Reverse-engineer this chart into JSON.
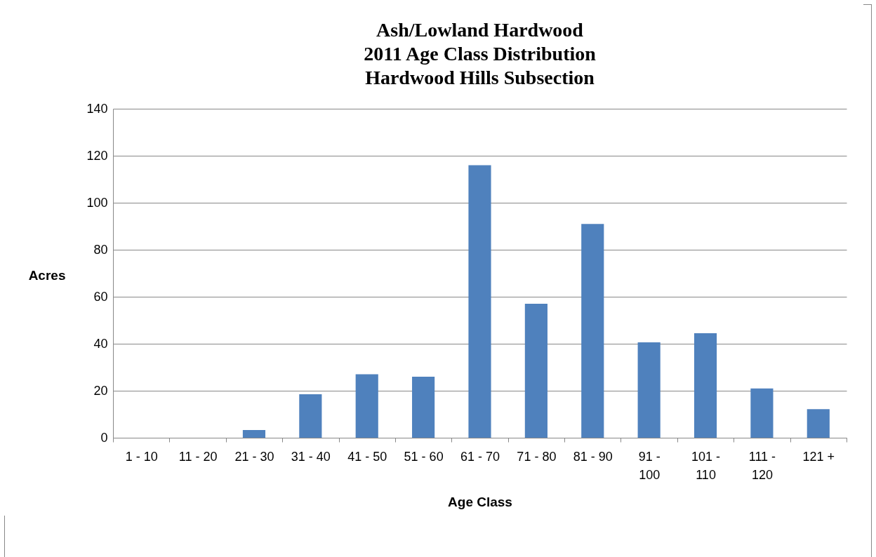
{
  "chart_data": {
    "type": "bar",
    "title": "Ash/Lowland Hardwood\n2011 Age Class Distribution\nHardwood Hills Subsection",
    "xlabel": "Age Class",
    "ylabel": "Acres",
    "categories": [
      "1 - 10",
      "11 - 20",
      "21 - 30",
      "31 - 40",
      "41 - 50",
      "51 - 60",
      "61 - 70",
      "71 - 80",
      "81 - 90",
      "91 - 100",
      "101 - 110",
      "111 - 120",
      "121 +"
    ],
    "values": [
      0,
      0,
      3.3,
      18.5,
      27,
      26,
      116,
      57,
      91,
      40.6,
      44.5,
      21,
      12.2
    ],
    "color": "#4f81bd",
    "ylim": [
      0,
      140
    ],
    "yticks": [
      0,
      20,
      40,
      60,
      80,
      100,
      120,
      140
    ],
    "grid": "y"
  }
}
